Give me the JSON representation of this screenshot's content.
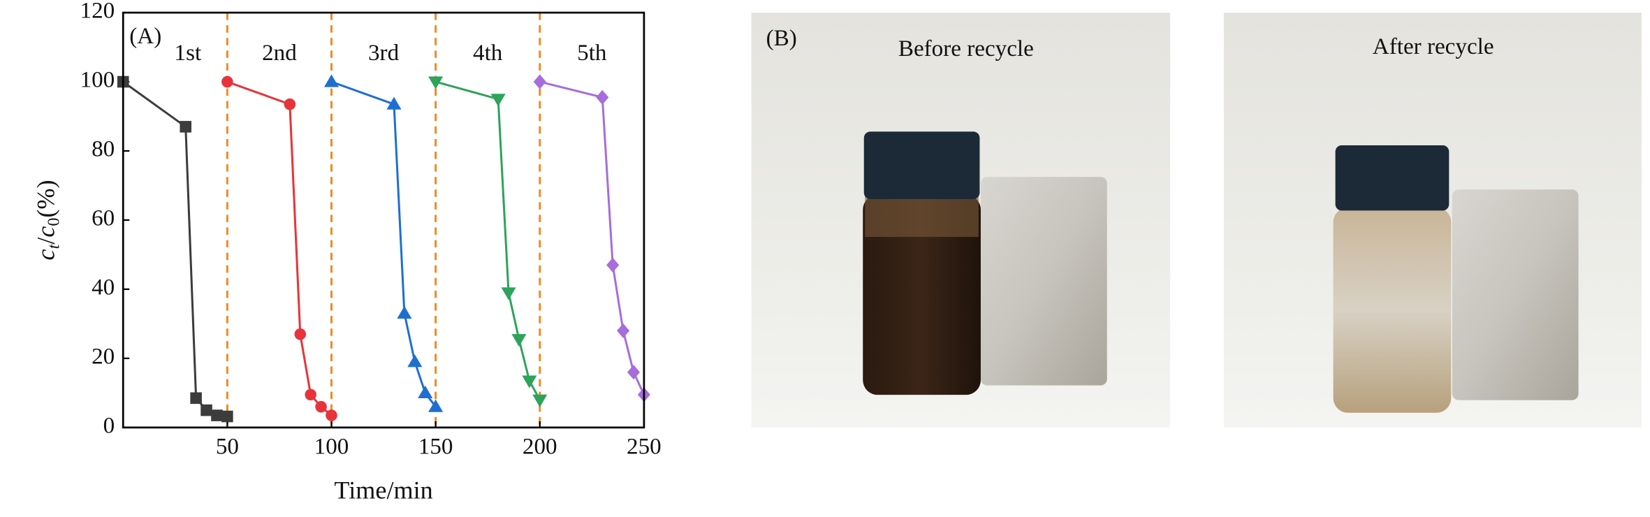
{
  "chart_data": {
    "type": "line",
    "annotation": "(A)",
    "xlabel": "Time/min",
    "ylabel": [
      "c",
      "t",
      "/",
      "c",
      "0",
      "(%)"
    ],
    "xlim": [
      0,
      250
    ],
    "xticks": [
      50,
      100,
      150,
      200,
      250
    ],
    "ylim": [
      0,
      120
    ],
    "yticks": [
      0,
      20,
      40,
      60,
      80,
      100,
      120
    ],
    "cycle_lines": {
      "x": [
        50,
        100,
        150,
        200
      ],
      "color": "#f08a24"
    },
    "cycle_labels": {
      "x": [
        25,
        75,
        125,
        175,
        225
      ],
      "labels": [
        "1st",
        "2nd",
        "3rd",
        "4th",
        "5th"
      ]
    },
    "series": [
      {
        "color": "#3c3c3c",
        "marker": "square",
        "x": [
          0,
          30,
          35,
          40,
          45,
          50
        ],
        "values": [
          100,
          87,
          8.5,
          5,
          3.5,
          3.2
        ]
      },
      {
        "color": "#e8333a",
        "marker": "circle",
        "x": [
          50,
          80,
          85,
          90,
          95,
          100
        ],
        "values": [
          100,
          93.5,
          27,
          9.5,
          6,
          3.5
        ]
      },
      {
        "color": "#1f6fd1",
        "marker": "triangle-up",
        "x": [
          100,
          130,
          135,
          140,
          145,
          150
        ],
        "values": [
          100,
          93.5,
          33,
          19,
          10,
          6
        ]
      },
      {
        "color": "#2ea35a",
        "marker": "triangle-down",
        "x": [
          150,
          180,
          185,
          190,
          195,
          200
        ],
        "values": [
          100,
          95,
          39,
          25.5,
          13.5,
          8
        ]
      },
      {
        "color": "#a66ddb",
        "marker": "diamond",
        "x": [
          200,
          230,
          235,
          240,
          245,
          250
        ],
        "values": [
          100,
          95.5,
          47,
          28,
          16,
          9.5
        ]
      }
    ]
  },
  "photos": {
    "annotation": "(B)",
    "before": "Before recycle",
    "after": "After recycle"
  }
}
